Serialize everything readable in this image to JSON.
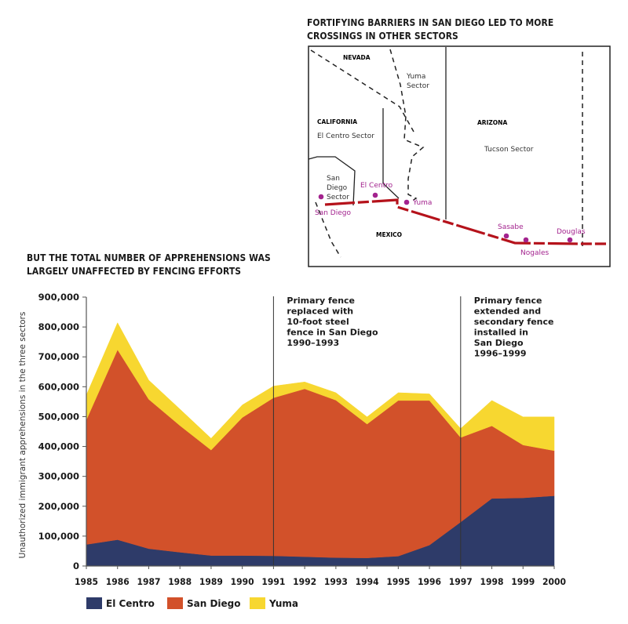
{
  "map": {
    "title_lines": [
      "FORTIFYING BARRIERS IN SAN DIEGO LED TO MORE",
      "CROSSINGS IN OTHER SECTORS"
    ],
    "labels": {
      "nevada": "NEVADA",
      "california": "CALIFORNIA",
      "arizona": "ARIZONA",
      "mexico": "MEXICO",
      "yuma_sector_1": "Yuma",
      "yuma_sector_2": "Sector",
      "el_centro_sector": "El Centro Sector",
      "tucson_sector": "Tucson Sector",
      "san_diego_sector_1": "San",
      "san_diego_sector_2": "Diego",
      "san_diego_sector_3": "Sector"
    },
    "cities": [
      "San Diego",
      "El Centro",
      "Yuma",
      "Sasabe",
      "Nogales",
      "Douglas"
    ],
    "colors": {
      "border": "#b5121b",
      "city": "#a3238e"
    }
  },
  "chart_data": {
    "type": "area",
    "stacked": true,
    "title": "BUT THE TOTAL NUMBER OF APPREHENSIONS WAS LARGELY UNAFFECTED BY FENCING EFFORTS",
    "title_lines": [
      "BUT THE TOTAL NUMBER OF APPREHENSIONS WAS",
      "LARGELY UNAFFECTED BY FENCING EFFORTS"
    ],
    "xlabel": "",
    "ylabel": "Unauthorized immigrant apprehensions in the three sectors",
    "x": [
      1985,
      1986,
      1987,
      1988,
      1989,
      1990,
      1991,
      1992,
      1993,
      1994,
      1995,
      1996,
      1997,
      1998,
      1999,
      2000
    ],
    "ylim": [
      0,
      900000
    ],
    "yticks": [
      0,
      100000,
      200000,
      300000,
      400000,
      500000,
      600000,
      700000,
      800000,
      900000
    ],
    "ytick_labels": [
      "0",
      "100,000",
      "200,000",
      "300,000",
      "400,000",
      "500,000",
      "600,000",
      "700,000",
      "800,000",
      "900,000"
    ],
    "xtick_labels": [
      "1985",
      "1986",
      "1987",
      "1988",
      "1989",
      "1990",
      "1991",
      "1992",
      "1993",
      "1994",
      "1995",
      "1996",
      "1997",
      "1998",
      "1999",
      "2000"
    ],
    "grid": false,
    "legend_position": "bottom-left",
    "series": [
      {
        "name": "El Centro",
        "color": "#2e3b69",
        "values": [
          72000,
          88000,
          58000,
          46000,
          35000,
          35000,
          34000,
          31000,
          28000,
          27000,
          33000,
          70000,
          147000,
          226000,
          228000,
          235000
        ]
      },
      {
        "name": "San Diego",
        "color": "#d2512a",
        "values": [
          417000,
          636000,
          500000,
          424000,
          353000,
          462000,
          529000,
          562000,
          527000,
          448000,
          521000,
          484000,
          283000,
          243000,
          177000,
          151000
        ]
      },
      {
        "name": "Yuma",
        "color": "#f7d730",
        "values": [
          83000,
          90000,
          64000,
          55000,
          39000,
          42000,
          39000,
          23000,
          25000,
          24000,
          26000,
          22000,
          30000,
          85000,
          94000,
          113000
        ]
      }
    ],
    "annotations": [
      {
        "x": 1991,
        "lines": [
          "Primary fence",
          "replaced with",
          "10-foot steel",
          "fence in San Diego",
          "1990–1993"
        ]
      },
      {
        "x": 1997,
        "lines": [
          "Primary fence",
          "extended and",
          "secondary fence",
          "installed in",
          "San Diego",
          "1996–1999"
        ]
      }
    ]
  }
}
